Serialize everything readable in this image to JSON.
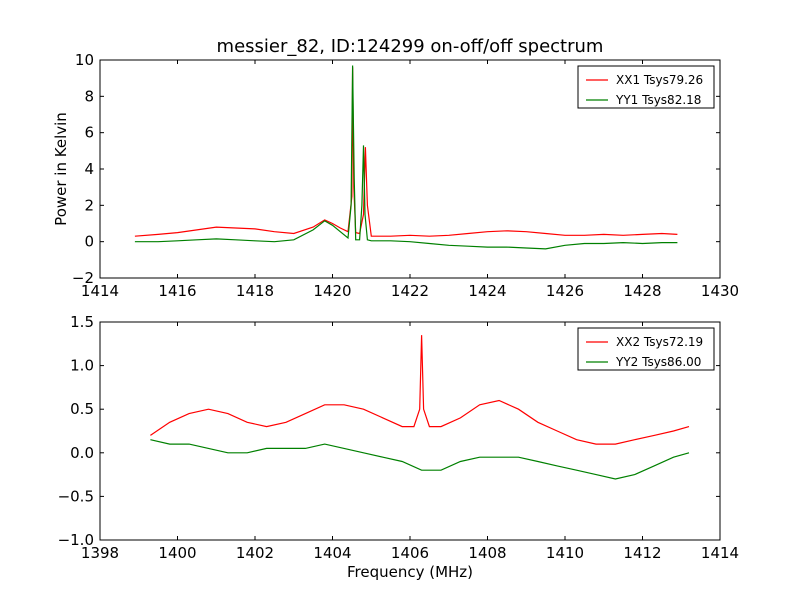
{
  "title": "messier_82, ID:124299 on-off/off spectrum",
  "xlabel": "Frequency (MHz)",
  "ylabel": "Power in Kelvin",
  "chart_data": [
    {
      "type": "line",
      "title": "messier_82, ID:124299 on-off/off spectrum",
      "ylabel": "Power in Kelvin",
      "xlim": [
        1414,
        1430
      ],
      "ylim": [
        -2,
        10
      ],
      "xticks": [
        "1414",
        "1416",
        "1418",
        "1420",
        "1422",
        "1424",
        "1426",
        "1428",
        "1430"
      ],
      "yticks": [
        "−2",
        "0",
        "2",
        "4",
        "6",
        "8",
        "10"
      ],
      "legend_position": "top-right",
      "series": [
        {
          "name": "XX1 Tsys79.26",
          "color": "#ff0000",
          "x": [
            1414.9,
            1415.5,
            1416.0,
            1416.5,
            1417.0,
            1417.5,
            1418.0,
            1418.5,
            1419.0,
            1419.5,
            1419.8,
            1420.0,
            1420.2,
            1420.4,
            1420.5,
            1420.52,
            1420.55,
            1420.6,
            1420.7,
            1420.8,
            1420.85,
            1420.9,
            1421.0,
            1421.5,
            1422.0,
            1422.5,
            1423.0,
            1423.5,
            1424.0,
            1424.5,
            1425.0,
            1425.5,
            1426.0,
            1426.5,
            1427.0,
            1427.5,
            1428.0,
            1428.5,
            1428.9
          ],
          "values": [
            0.3,
            0.4,
            0.5,
            0.65,
            0.8,
            0.75,
            0.7,
            0.55,
            0.45,
            0.8,
            1.2,
            1.0,
            0.75,
            0.55,
            2.5,
            9.6,
            3.0,
            0.5,
            0.45,
            1.5,
            5.2,
            2.0,
            0.3,
            0.3,
            0.35,
            0.3,
            0.35,
            0.45,
            0.55,
            0.6,
            0.55,
            0.45,
            0.35,
            0.35,
            0.4,
            0.35,
            0.4,
            0.45,
            0.4
          ]
        },
        {
          "name": "YY1 Tsys82.18",
          "color": "#008000",
          "x": [
            1414.9,
            1415.5,
            1416.0,
            1416.5,
            1417.0,
            1417.5,
            1418.0,
            1418.5,
            1419.0,
            1419.5,
            1419.8,
            1420.0,
            1420.2,
            1420.4,
            1420.48,
            1420.52,
            1420.56,
            1420.6,
            1420.7,
            1420.76,
            1420.8,
            1420.84,
            1420.9,
            1421.0,
            1421.5,
            1422.0,
            1422.5,
            1423.0,
            1423.5,
            1424.0,
            1424.5,
            1425.0,
            1425.5,
            1426.0,
            1426.5,
            1427.0,
            1427.5,
            1428.0,
            1428.5,
            1428.9
          ],
          "values": [
            0.0,
            0.0,
            0.05,
            0.1,
            0.15,
            0.1,
            0.05,
            0.0,
            0.1,
            0.65,
            1.15,
            0.9,
            0.55,
            0.2,
            2.0,
            9.7,
            3.5,
            0.1,
            0.1,
            2.0,
            5.3,
            1.5,
            0.1,
            0.05,
            0.05,
            0.0,
            -0.1,
            -0.2,
            -0.25,
            -0.3,
            -0.3,
            -0.35,
            -0.4,
            -0.2,
            -0.1,
            -0.1,
            -0.05,
            -0.1,
            -0.05,
            -0.05
          ]
        }
      ]
    },
    {
      "type": "line",
      "xlabel": "Frequency (MHz)",
      "xlim": [
        1398,
        1414
      ],
      "ylim": [
        -1.0,
        1.5
      ],
      "xticks": [
        "1398",
        "1400",
        "1402",
        "1404",
        "1406",
        "1408",
        "1410",
        "1412",
        "1414"
      ],
      "yticks": [
        "−1.0",
        "−0.5",
        "0.0",
        "0.5",
        "1.0",
        "1.5"
      ],
      "legend_position": "top-right",
      "series": [
        {
          "name": "XX2 Tsys72.19",
          "color": "#ff0000",
          "x": [
            1399.3,
            1399.8,
            1400.3,
            1400.8,
            1401.3,
            1401.8,
            1402.3,
            1402.8,
            1403.3,
            1403.8,
            1404.3,
            1404.8,
            1405.3,
            1405.8,
            1406.1,
            1406.25,
            1406.3,
            1406.35,
            1406.5,
            1406.8,
            1407.3,
            1407.8,
            1408.3,
            1408.8,
            1409.3,
            1409.8,
            1410.3,
            1410.8,
            1411.3,
            1411.8,
            1412.3,
            1412.8,
            1413.2
          ],
          "values": [
            0.2,
            0.35,
            0.45,
            0.5,
            0.45,
            0.35,
            0.3,
            0.35,
            0.45,
            0.55,
            0.55,
            0.5,
            0.4,
            0.3,
            0.3,
            0.5,
            1.35,
            0.5,
            0.3,
            0.3,
            0.4,
            0.55,
            0.6,
            0.5,
            0.35,
            0.25,
            0.15,
            0.1,
            0.1,
            0.15,
            0.2,
            0.25,
            0.3
          ]
        },
        {
          "name": "YY2 Tsys86.00",
          "color": "#008000",
          "x": [
            1399.3,
            1399.8,
            1400.3,
            1400.8,
            1401.3,
            1401.8,
            1402.3,
            1402.8,
            1403.3,
            1403.8,
            1404.3,
            1404.8,
            1405.3,
            1405.8,
            1406.3,
            1406.8,
            1407.3,
            1407.8,
            1408.3,
            1408.8,
            1409.3,
            1409.8,
            1410.3,
            1410.8,
            1411.3,
            1411.8,
            1412.3,
            1412.8,
            1413.2
          ],
          "values": [
            0.15,
            0.1,
            0.1,
            0.05,
            0.0,
            0.0,
            0.05,
            0.05,
            0.05,
            0.1,
            0.05,
            0.0,
            -0.05,
            -0.1,
            -0.2,
            -0.2,
            -0.1,
            -0.05,
            -0.05,
            -0.05,
            -0.1,
            -0.15,
            -0.2,
            -0.25,
            -0.3,
            -0.25,
            -0.15,
            -0.05,
            0.0
          ]
        }
      ]
    }
  ]
}
